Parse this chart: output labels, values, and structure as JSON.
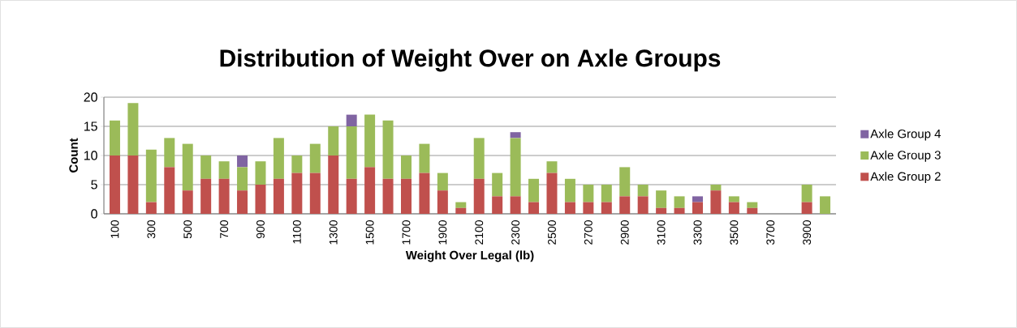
{
  "chart_data": {
    "type": "bar",
    "title": "Distribution of Weight Over on Axle Groups",
    "xlabel": "Weight Over Legal (lb)",
    "ylabel": "Count",
    "categories": [
      "100",
      null,
      "300",
      null,
      "500",
      null,
      "700",
      null,
      "900",
      null,
      "1100",
      null,
      "1300",
      null,
      "1500",
      null,
      "1700",
      null,
      "1900",
      null,
      "2100",
      null,
      "2300",
      null,
      "2500",
      null,
      "2700",
      null,
      "2900",
      null,
      "3100",
      null,
      "3300",
      null,
      "3500",
      null,
      "3700",
      null,
      "3900",
      null
    ],
    "series": [
      {
        "name": "Axle Group 2",
        "color": "#c0504d",
        "values": [
          10,
          10,
          2,
          8,
          4,
          6,
          6,
          4,
          5,
          6,
          7,
          7,
          10,
          6,
          8,
          6,
          6,
          7,
          4,
          1,
          6,
          3,
          3,
          2,
          7,
          2,
          2,
          2,
          3,
          3,
          1,
          1,
          2,
          4,
          2,
          1,
          0,
          0,
          2,
          0
        ]
      },
      {
        "name": "Axle Group 3",
        "color": "#9bbb59",
        "values": [
          6,
          9,
          9,
          5,
          8,
          4,
          3,
          4,
          4,
          7,
          3,
          5,
          5,
          9,
          9,
          10,
          4,
          5,
          3,
          1,
          7,
          4,
          10,
          4,
          2,
          4,
          3,
          3,
          5,
          2,
          3,
          2,
          0,
          1,
          1,
          1,
          0,
          0,
          3,
          3
        ]
      },
      {
        "name": "Axle Group 4",
        "color": "#8064a2",
        "values": [
          0,
          0,
          0,
          0,
          0,
          0,
          0,
          2,
          0,
          0,
          0,
          0,
          0,
          2,
          0,
          0,
          0,
          0,
          0,
          0,
          0,
          0,
          1,
          0,
          0,
          0,
          0,
          0,
          0,
          0,
          0,
          0,
          1,
          0,
          0,
          0,
          0,
          0,
          0,
          0
        ]
      }
    ],
    "stacked": true,
    "ylim": [
      0,
      20
    ],
    "yticks": [
      0,
      5,
      10,
      15,
      20
    ],
    "grid": "y",
    "legend": "right"
  }
}
